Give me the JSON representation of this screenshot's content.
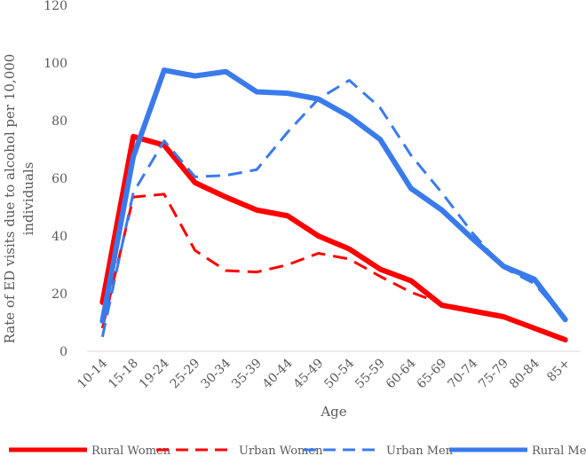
{
  "chart_data": {
    "type": "line",
    "title": "",
    "xlabel": "Age",
    "ylabel_lines": [
      "Rate of ED visits due to alcohol per 10,000",
      "individuals"
    ],
    "categories": [
      "10-14",
      "15-18",
      "19-24",
      "25-29",
      "30-34",
      "35-39",
      "40-44",
      "45-49",
      "50-54",
      "55-59",
      "60-64",
      "65-69",
      "70-74",
      "75-79",
      "80-84",
      "85+"
    ],
    "yticks": [
      0,
      20,
      40,
      60,
      80,
      100,
      120
    ],
    "ylim": [
      0,
      120
    ],
    "grid": false,
    "legend_position": "bottom",
    "series": [
      {
        "name": "Rural Women",
        "color": "#FF0000",
        "style": "solid",
        "values": [
          17,
          74.5,
          71.5,
          58.5,
          53.5,
          49,
          47,
          40,
          35.5,
          28.5,
          24.5,
          16,
          14,
          12,
          8,
          4
        ]
      },
      {
        "name": "Urban Women",
        "color": "#FF0000",
        "style": "dashed",
        "values": [
          8,
          53.5,
          54.5,
          35,
          28,
          27.5,
          30,
          34,
          32,
          26,
          20.5,
          16.5,
          null,
          null,
          null,
          null
        ]
      },
      {
        "name": "Urban Men",
        "color": "#3A7BEB",
        "style": "dashed",
        "values": [
          5,
          55,
          73,
          60.5,
          61,
          63,
          76,
          87.5,
          94,
          84.5,
          68,
          55,
          41,
          29,
          23.5,
          11
        ]
      },
      {
        "name": "Rural Men",
        "color": "#3A7BEB",
        "style": "solid",
        "values": [
          10.5,
          67.5,
          97.5,
          95.5,
          97,
          90,
          89.5,
          87.5,
          81.5,
          73.5,
          56.5,
          49,
          39,
          29.5,
          25,
          11
        ]
      }
    ]
  }
}
